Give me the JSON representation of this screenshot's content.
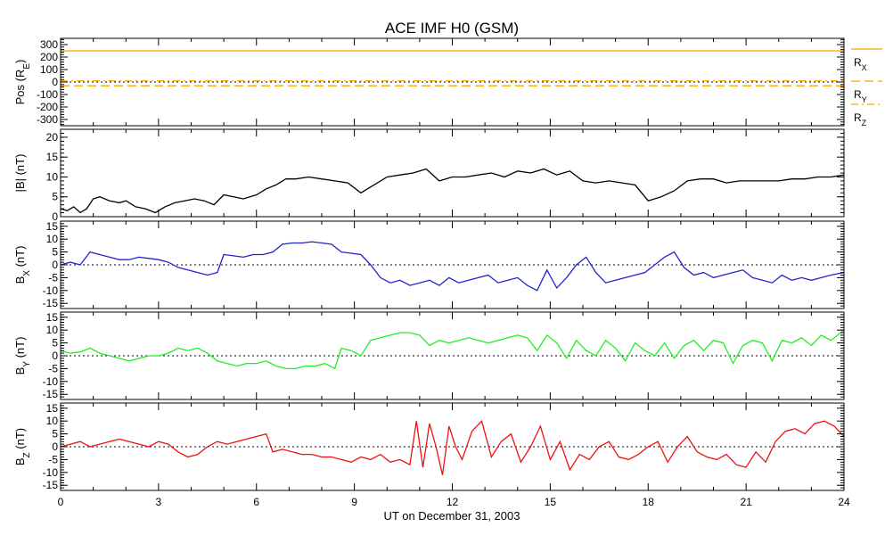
{
  "chart_data": {
    "type": "line",
    "title": "ACE IMF H0 (GSM)",
    "xlabel": "UT on December 31, 2003",
    "xlim": [
      0,
      24
    ],
    "xticks": [
      0,
      3,
      6,
      9,
      12,
      15,
      18,
      21,
      24
    ],
    "xtick_labels": [
      "0",
      "3",
      "6",
      "9",
      "12",
      "15",
      "18",
      "21",
      "24"
    ],
    "panels": [
      {
        "id": "pos",
        "ylabel_main": "Pos (R",
        "ylabel_sub": "E",
        "ylabel_end": ")",
        "ylim": [
          -350,
          350
        ],
        "yticks": [
          -300,
          -200,
          -100,
          0,
          100,
          200,
          300
        ],
        "ytick_labels": [
          "-300",
          "-200",
          "-100",
          "0",
          "100",
          "200",
          "300"
        ],
        "zero_line": true,
        "legend": [
          {
            "main": "R",
            "sub": "X",
            "color": "#ffa500",
            "dash": ""
          },
          {
            "main": "R",
            "sub": "Y",
            "color": "#ffa500",
            "dash": "10,5"
          },
          {
            "main": "R",
            "sub": "Z",
            "color": "#ffa500",
            "dash": "8,4,2,4"
          }
        ],
        "series": [
          {
            "name": "RX",
            "color": "#ffa500",
            "dash": "",
            "x": [
              0,
              24
            ],
            "y": [
              250,
              250
            ]
          },
          {
            "name": "RY",
            "color": "#ffa500",
            "dash": "10,5",
            "x": [
              0,
              24
            ],
            "y": [
              -30,
              -30
            ]
          },
          {
            "name": "RZ",
            "color": "#ffa500",
            "dash": "8,4,2,4",
            "x": [
              0,
              24
            ],
            "y": [
              10,
              10
            ]
          }
        ]
      },
      {
        "id": "bt",
        "ylabel_main": "|B| (nT)",
        "ylim": [
          0,
          22
        ],
        "yticks": [
          0,
          5,
          10,
          15,
          20
        ],
        "ytick_labels": [
          "0",
          "5",
          "10",
          "15",
          "20"
        ],
        "zero_line": false,
        "series": [
          {
            "name": "|B|",
            "color": "#000000",
            "x": [
              0,
              0.2,
              0.4,
              0.6,
              0.8,
              1.0,
              1.2,
              1.5,
              1.8,
              2.0,
              2.3,
              2.6,
              2.9,
              3.2,
              3.5,
              3.8,
              4.1,
              4.4,
              4.7,
              5.0,
              5.3,
              5.6,
              6.0,
              6.3,
              6.6,
              6.9,
              7.2,
              7.6,
              8.0,
              8.4,
              8.8,
              9.2,
              9.6,
              10.0,
              10.4,
              10.8,
              11.2,
              11.6,
              12.0,
              12.4,
              12.8,
              13.2,
              13.6,
              14.0,
              14.4,
              14.8,
              15.2,
              15.6,
              16.0,
              16.4,
              16.8,
              17.2,
              17.6,
              18.0,
              18.4,
              18.8,
              19.2,
              19.6,
              20.0,
              20.4,
              20.8,
              21.2,
              21.6,
              22.0,
              22.4,
              22.8,
              23.2,
              23.6,
              24.0
            ],
            "y": [
              2,
              1.5,
              2.5,
              1,
              2,
              4.5,
              5,
              4,
              3.5,
              4,
              2.5,
              2,
              1,
              2.5,
              3.5,
              4,
              4.5,
              4,
              3,
              5.5,
              5,
              4.5,
              5.5,
              7,
              8,
              9.5,
              9.5,
              10,
              9.5,
              9,
              8.5,
              6,
              8,
              10,
              10.5,
              11,
              12,
              9,
              10,
              10,
              10.5,
              11,
              10,
              11.5,
              11,
              12,
              10.5,
              11.5,
              9,
              8.5,
              9,
              8.5,
              8,
              4,
              5,
              6.5,
              9,
              9.5,
              9.5,
              8.5,
              9,
              9,
              9,
              9,
              9.5,
              9.5,
              10,
              10,
              10.5
            ]
          }
        ]
      },
      {
        "id": "bx",
        "ylabel_main": "B",
        "ylabel_sub": "X",
        "ylabel_end": " (nT)",
        "ylim": [
          -17,
          17
        ],
        "yticks": [
          -15,
          -10,
          -5,
          0,
          5,
          10,
          15
        ],
        "ytick_labels": [
          "-15",
          "-10",
          "-5",
          "0",
          "5",
          "10",
          "15"
        ],
        "zero_line": true,
        "series": [
          {
            "name": "BX",
            "color": "#2222cc",
            "x": [
              0,
              0.3,
              0.6,
              0.9,
              1.2,
              1.5,
              1.8,
              2.1,
              2.4,
              2.7,
              3.0,
              3.3,
              3.6,
              3.9,
              4.2,
              4.5,
              4.8,
              5.0,
              5.3,
              5.6,
              5.9,
              6.2,
              6.5,
              6.8,
              7.1,
              7.4,
              7.7,
              8.0,
              8.3,
              8.6,
              8.9,
              9.2,
              9.5,
              9.8,
              10.1,
              10.4,
              10.7,
              11.0,
              11.3,
              11.6,
              11.9,
              12.2,
              12.5,
              12.8,
              13.1,
              13.4,
              13.7,
              14.0,
              14.3,
              14.6,
              14.9,
              15.2,
              15.5,
              15.8,
              16.1,
              16.4,
              16.7,
              17.0,
              17.3,
              17.6,
              17.9,
              18.2,
              18.5,
              18.8,
              19.1,
              19.4,
              19.7,
              20.0,
              20.3,
              20.6,
              20.9,
              21.2,
              21.5,
              21.8,
              22.1,
              22.4,
              22.7,
              23.0,
              23.3,
              23.6,
              24.0
            ],
            "y": [
              0,
              1,
              0,
              5,
              4,
              3,
              2,
              2,
              3,
              2.5,
              2,
              1,
              -1,
              -2,
              -3,
              -4,
              -3,
              4,
              3.5,
              3,
              4,
              4,
              5,
              8,
              8.5,
              8.5,
              9,
              8.5,
              8,
              5,
              4.5,
              4,
              0,
              -5,
              -7,
              -6,
              -8,
              -7,
              -6,
              -8,
              -5,
              -7,
              -6,
              -5,
              -4,
              -7,
              -6,
              -5,
              -8,
              -10,
              -2,
              -9,
              -5,
              0,
              3,
              -3,
              -7,
              -6,
              -5,
              -4,
              -3,
              0,
              3,
              5,
              -1,
              -4,
              -3,
              -5,
              -4,
              -3,
              -2,
              -5,
              -6,
              -7,
              -4,
              -6,
              -5,
              -6,
              -5,
              -4,
              -3
            ]
          }
        ]
      },
      {
        "id": "by",
        "ylabel_main": "B",
        "ylabel_sub": "Y",
        "ylabel_end": " (nT)",
        "ylim": [
          -17,
          17
        ],
        "yticks": [
          -15,
          -10,
          -5,
          0,
          5,
          10,
          15
        ],
        "ytick_labels": [
          "-15",
          "-10",
          "-5",
          "0",
          "5",
          "10",
          "15"
        ],
        "zero_line": true,
        "series": [
          {
            "name": "BY",
            "color": "#22ee22",
            "x": [
              0,
              0.3,
              0.6,
              0.9,
              1.2,
              1.5,
              1.8,
              2.1,
              2.4,
              2.7,
              3.0,
              3.3,
              3.6,
              3.9,
              4.2,
              4.5,
              4.8,
              5.1,
              5.4,
              5.7,
              6.0,
              6.3,
              6.6,
              6.9,
              7.2,
              7.5,
              7.8,
              8.1,
              8.4,
              8.6,
              8.9,
              9.2,
              9.5,
              9.8,
              10.1,
              10.4,
              10.7,
              11.0,
              11.3,
              11.6,
              11.9,
              12.2,
              12.5,
              12.8,
              13.1,
              13.4,
              13.7,
              14.0,
              14.3,
              14.6,
              14.9,
              15.2,
              15.5,
              15.8,
              16.1,
              16.4,
              16.7,
              17.0,
              17.3,
              17.6,
              17.9,
              18.2,
              18.5,
              18.8,
              19.1,
              19.4,
              19.7,
              20.0,
              20.3,
              20.6,
              20.9,
              21.2,
              21.5,
              21.8,
              22.1,
              22.4,
              22.7,
              23.0,
              23.3,
              23.6,
              24.0
            ],
            "y": [
              2,
              1,
              1.5,
              3,
              1,
              0,
              -1,
              -2,
              -1,
              0,
              0,
              1,
              3,
              2,
              3,
              1,
              -2,
              -3,
              -4,
              -3,
              -3,
              -2,
              -4,
              -5,
              -5,
              -4,
              -4,
              -3,
              -5,
              3,
              2,
              0,
              6,
              7,
              8,
              9,
              9,
              8,
              4,
              6,
              5,
              6,
              7,
              6,
              5,
              6,
              7,
              8,
              7,
              2,
              8,
              5,
              -1,
              6,
              2,
              0,
              6,
              3,
              -2,
              5,
              2,
              0,
              5,
              -1,
              4,
              6,
              2,
              6,
              5,
              -3,
              4,
              6,
              5,
              -2,
              6,
              5,
              7,
              4,
              8,
              6,
              10
            ]
          }
        ]
      },
      {
        "id": "bz",
        "ylabel_main": "B",
        "ylabel_sub": "Z",
        "ylabel_end": " (nT)",
        "ylim": [
          -17,
          17
        ],
        "yticks": [
          -15,
          -10,
          -5,
          0,
          5,
          10,
          15
        ],
        "ytick_labels": [
          "-15",
          "-10",
          "-5",
          "0",
          "5",
          "10",
          "15"
        ],
        "zero_line": true,
        "series": [
          {
            "name": "BZ",
            "color": "#ee1111",
            "x": [
              0,
              0.3,
              0.6,
              0.9,
              1.2,
              1.5,
              1.8,
              2.1,
              2.4,
              2.7,
              3.0,
              3.3,
              3.6,
              3.9,
              4.2,
              4.5,
              4.8,
              5.1,
              5.4,
              5.7,
              6.0,
              6.3,
              6.5,
              6.8,
              7.1,
              7.4,
              7.7,
              8.0,
              8.3,
              8.6,
              8.9,
              9.2,
              9.5,
              9.8,
              10.1,
              10.4,
              10.7,
              10.9,
              11.1,
              11.3,
              11.5,
              11.7,
              11.9,
              12.1,
              12.3,
              12.6,
              12.9,
              13.2,
              13.5,
              13.8,
              14.1,
              14.4,
              14.7,
              15.0,
              15.3,
              15.6,
              15.9,
              16.2,
              16.5,
              16.8,
              17.1,
              17.4,
              17.7,
              18.0,
              18.3,
              18.6,
              18.9,
              19.2,
              19.5,
              19.8,
              20.1,
              20.4,
              20.7,
              21.0,
              21.3,
              21.6,
              21.9,
              22.2,
              22.5,
              22.8,
              23.1,
              23.4,
              23.7,
              24.0
            ],
            "y": [
              0,
              1,
              2,
              0,
              1,
              2,
              3,
              2,
              1,
              0,
              2,
              1,
              -2,
              -4,
              -3,
              0,
              2,
              1,
              2,
              3,
              4,
              5,
              -2,
              -1,
              -2,
              -3,
              -3,
              -4,
              -4,
              -5,
              -6,
              -4,
              -5,
              -3,
              -6,
              -5,
              -7,
              10,
              -8,
              9,
              0,
              -11,
              8,
              0,
              -5,
              6,
              10,
              -4,
              2,
              5,
              -6,
              0,
              8,
              -5,
              2,
              -9,
              -3,
              -5,
              0,
              2,
              -4,
              -5,
              -3,
              0,
              2,
              -6,
              0,
              4,
              -2,
              -4,
              -5,
              -3,
              -7,
              -8,
              -2,
              -6,
              2,
              6,
              7,
              5,
              9,
              10,
              8,
              4
            ]
          }
        ]
      }
    ]
  }
}
